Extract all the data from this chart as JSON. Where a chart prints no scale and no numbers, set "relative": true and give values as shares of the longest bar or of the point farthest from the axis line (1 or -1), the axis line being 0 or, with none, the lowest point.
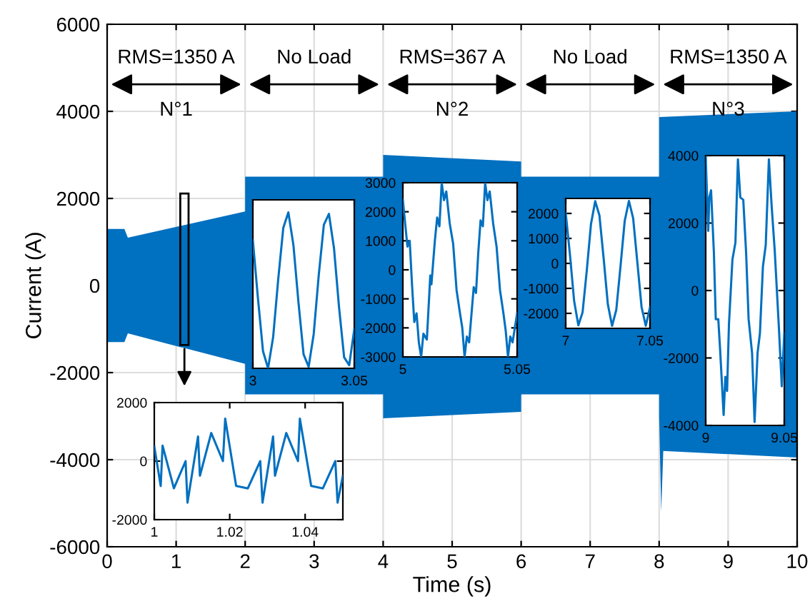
{
  "chart_data": [
    {
      "type": "area",
      "xlabel": "Time (s)",
      "ylabel": "Current (A)",
      "xlim": [
        0,
        10
      ],
      "xticks": [
        0,
        1,
        2,
        3,
        4,
        5,
        6,
        7,
        8,
        9,
        10
      ],
      "ylim": [
        -6000,
        6000
      ],
      "yticks": [
        -6000,
        -4000,
        -2000,
        0,
        2000,
        4000,
        6000
      ],
      "grid": true,
      "series": [
        {
          "color": "#0070c0",
          "x": [
            0,
            0.25,
            0.3,
            2,
            2,
            4,
            4,
            6,
            6,
            8,
            8,
            10
          ],
          "values": [
            1300,
            1300,
            1100,
            1700,
            2500,
            2500,
            3000,
            2850,
            2500,
            2500,
            3870,
            4000
          ]
        },
        {
          "color": "#0070c0",
          "x": [
            0,
            0.25,
            0.3,
            2,
            2,
            4,
            4,
            6,
            6,
            8,
            8,
            8.03,
            8.06,
            10
          ],
          "values": [
            -1300,
            -1300,
            -1100,
            -1800,
            -2500,
            -2500,
            -3050,
            -2900,
            -2500,
            -2500,
            -3000,
            -5200,
            -3800,
            -3950
          ]
        }
      ],
      "annotations": [
        "RMS=1350 A",
        "N°1",
        "No Load",
        "RMS=367 A",
        "N°2",
        "No Load",
        "RMS=1350 A",
        "N°3"
      ]
    },
    {
      "type": "line",
      "xlim": [
        1,
        1.05
      ],
      "xticks": [
        1,
        1.02,
        1.04
      ],
      "ylim": [
        -2000,
        2000
      ],
      "yticks": [
        -2000,
        0,
        2000
      ],
      "series": [
        {
          "color": "#0070c0",
          "x": [
            1.0,
            1.0017,
            1.0022,
            1.0052,
            1.0083,
            1.0088,
            1.0116,
            1.0121,
            1.0151,
            1.0182,
            1.0188,
            1.0217,
            1.0248,
            1.0281,
            1.0287,
            1.0315,
            1.032,
            1.035,
            1.0381,
            1.0386,
            1.0416,
            1.0447,
            1.048,
            1.0486,
            1.05
          ],
          "values": [
            500,
            -850,
            530,
            -930,
            0,
            -1420,
            840,
            -500,
            960,
            0,
            1450,
            -850,
            -930,
            0,
            -1420,
            840,
            -500,
            960,
            0,
            1450,
            -850,
            -930,
            0,
            -1420,
            -500
          ]
        }
      ]
    },
    {
      "type": "line",
      "relative": true,
      "tick_labels": "x",
      "xlim": [
        3,
        3.05
      ],
      "xticks": [
        3,
        3.05
      ],
      "series": [
        {
          "color": "#0070c0",
          "x": [
            3,
            3.0025,
            3.005,
            3.0075,
            3.01,
            3.0125,
            3.015,
            3.0175,
            3.02,
            3.0225,
            3.025,
            3.0275,
            3.03,
            3.0325,
            3.035,
            3.0375,
            3.04,
            3.0425,
            3.045,
            3.0475,
            3.05
          ],
          "values": [
            0.82,
            0.45,
            0.11,
            0,
            0.2,
            0.57,
            0.9,
            1,
            0.79,
            0.42,
            0.09,
            0.01,
            0.22,
            0.6,
            0.92,
            0.99,
            0.77,
            0.39,
            0.07,
            0.02,
            0.25
          ]
        }
      ]
    },
    {
      "type": "line",
      "xlim": [
        5,
        5.05
      ],
      "xticks": [
        5,
        5.05
      ],
      "ylim": [
        -3000,
        3000
      ],
      "yticks": [
        -3000,
        -2000,
        -1000,
        0,
        1000,
        2000,
        3000
      ],
      "series": [
        {
          "color": "#0070c0",
          "x": [
            5.0,
            5.002,
            5.003,
            5.004,
            5.005,
            5.006,
            5.007,
            5.008,
            5.009,
            5.0105,
            5.012,
            5.0125,
            5.014,
            5.015,
            5.016,
            5.017,
            5.018,
            5.019,
            5.0205,
            5.022,
            5.0235,
            5.025,
            5.026,
            5.027,
            5.028,
            5.029,
            5.031,
            5.032,
            5.033,
            5.034,
            5.035,
            5.036,
            5.037,
            5.038,
            5.0395,
            5.041,
            5.0425,
            5.044,
            5.045,
            5.046,
            5.047,
            5.048,
            5.05
          ],
          "values": [
            2400,
            800,
            1000,
            -500,
            -1800,
            -1500,
            -2500,
            -3000,
            -2200,
            -2400,
            -200,
            -500,
            1000,
            1800,
            1500,
            3000,
            2400,
            2700,
            1600,
            900,
            -700,
            -1500,
            -2000,
            -3000,
            -2300,
            -2500,
            -600,
            -800,
            600,
            1700,
            1500,
            3000,
            2400,
            2700,
            1600,
            800,
            -700,
            -1500,
            -2100,
            -3000,
            -2300,
            -2500,
            -1500
          ]
        }
      ]
    },
    {
      "type": "line",
      "xlim": [
        7,
        7.05
      ],
      "xticks": [
        7,
        7.05
      ],
      "ylim": [
        -2600,
        2600
      ],
      "yticks": [
        -2000,
        -1000,
        0,
        1000,
        2000
      ],
      "series": [
        {
          "color": "#0070c0",
          "x": [
            7,
            7.0025,
            7.005,
            7.0075,
            7.01,
            7.0125,
            7.015,
            7.0175,
            7.02,
            7.0225,
            7.025,
            7.0275,
            7.03,
            7.0325,
            7.035,
            7.0375,
            7.04,
            7.0425,
            7.045,
            7.0475,
            7.05
          ],
          "values": [
            2010,
            360,
            -1510,
            -2480,
            -1960,
            -280,
            1580,
            2490,
            1920,
            200,
            -1640,
            -2500,
            -1860,
            -120,
            1700,
            2500,
            1810,
            40,
            -1750,
            -2500,
            -1760
          ]
        }
      ]
    },
    {
      "type": "line",
      "xlim": [
        9,
        9.05
      ],
      "xticks": [
        9,
        9.05
      ],
      "ylim": [
        -4000,
        4000
      ],
      "yticks": [
        -4000,
        -2000,
        0,
        2000,
        4000
      ],
      "series": [
        {
          "color": "#0070c0",
          "x": [
            9,
            9.0016,
            9.0023,
            9.0034,
            9.0052,
            9.0064,
            9.008,
            9.0091,
            9.0114,
            9.0125,
            9.0136,
            9.0148,
            9.017,
            9.0189,
            9.0205,
            9.022,
            9.0239,
            9.0257,
            9.0273,
            9.0295,
            9.0311,
            9.033,
            9.0345,
            9.0364,
            9.0382,
            9.0402,
            9.042,
            9.0439,
            9.0466,
            9.0484,
            9.05
          ],
          "values": [
            3960,
            1770,
            2760,
            2970,
            1130,
            -850,
            -850,
            -1700,
            -3690,
            -2560,
            -2980,
            -990,
            920,
            1420,
            3890,
            2760,
            2690,
            1130,
            -850,
            -1850,
            -3900,
            -1850,
            -1270,
            710,
            1350,
            3890,
            2480,
            1200,
            -1130,
            -2840,
            -1270
          ]
        }
      ]
    }
  ]
}
